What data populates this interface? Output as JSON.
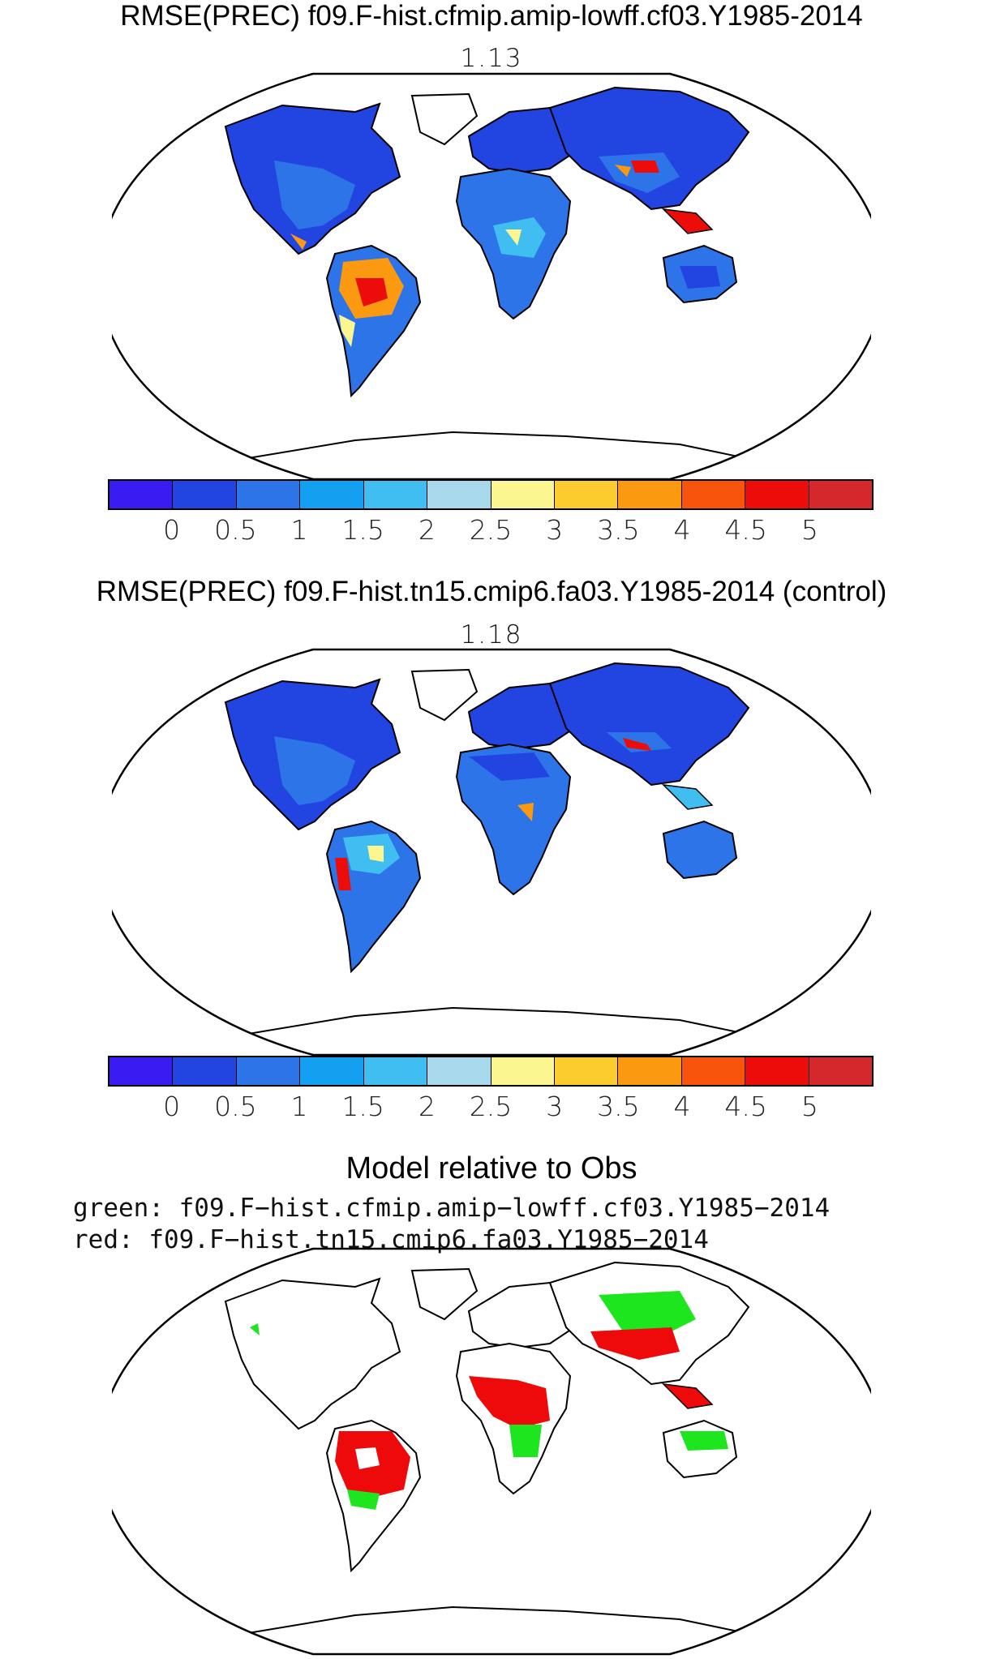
{
  "panel1": {
    "title": "RMSE(PREC) f09.F-hist.cfmip.amip-lowff.cf03.Y1985-2014",
    "global_value": "1.13"
  },
  "panel2": {
    "title": "RMSE(PREC) f09.F-hist.tn15.cmip6.fa03.Y1985-2014 (control)",
    "global_value": "1.18"
  },
  "colorbar": {
    "colors": [
      "#3a1cf2",
      "#2244e0",
      "#2d74e8",
      "#14a0f0",
      "#40bef2",
      "#a8d8ec",
      "#fbf690",
      "#fccc2e",
      "#fb9a10",
      "#f9540c",
      "#ec0c0a",
      "#d4282c"
    ],
    "tick_labels": [
      "0",
      "0.5",
      "1",
      "1.5",
      "2",
      "2.5",
      "3",
      "3.5",
      "4",
      "4.5",
      "5"
    ]
  },
  "panel3": {
    "title": "Model relative to Obs",
    "legend": [
      {
        "color_name": "green",
        "label": "green: f09.F−hist.cfmip.amip−lowff.cf03.Y1985−2014",
        "color": "#1ee61e"
      },
      {
        "color_name": "red",
        "label": "red: f09.F−hist.tn15.cmip6.fa03.Y1985−2014",
        "color": "#ee0a0a"
      }
    ]
  },
  "map_colors": {
    "low": "#2244e0",
    "mid": "#2d74e8",
    "light": "#40bef2",
    "yellow": "#fbf690",
    "orange": "#fb9a10",
    "red": "#ec0c0a",
    "green": "#1ee61e",
    "better_red": "#ee0a0a"
  }
}
